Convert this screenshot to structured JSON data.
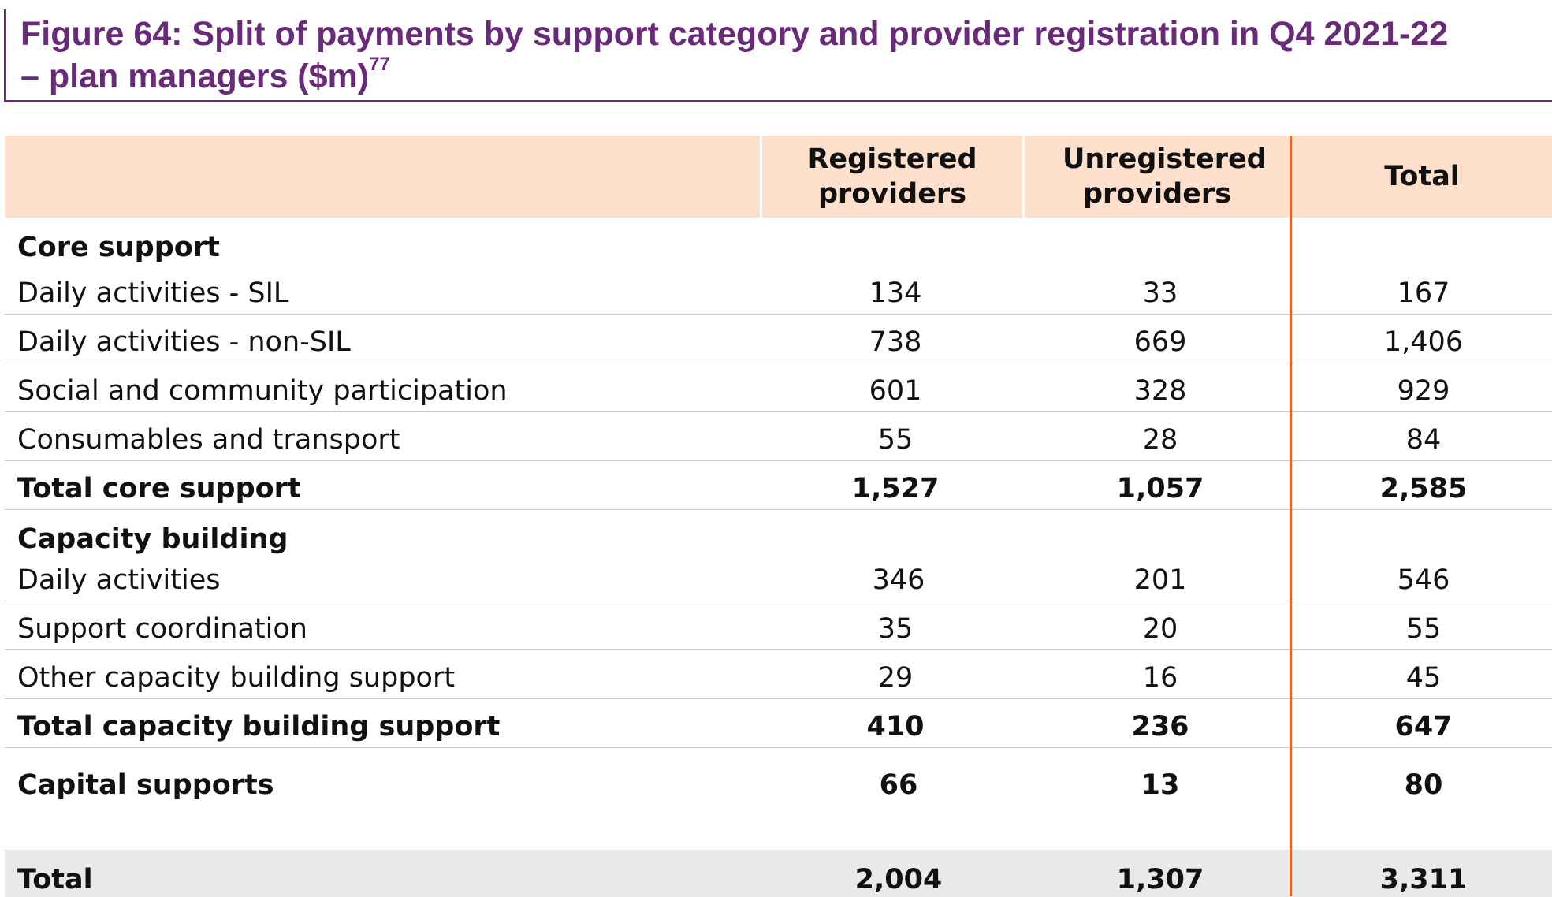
{
  "figure": {
    "title": "Figure 64: Split of payments by support category and provider registration in Q4 2021-22",
    "title_line2": "– plan managers ($m)",
    "footnote_ref": "77"
  },
  "table": {
    "columns": [
      "",
      "Registered providers",
      "Unregistered providers",
      "Total"
    ],
    "rows": [
      {
        "label": "Core support",
        "type": "section"
      },
      {
        "label": "Daily activities - SIL",
        "values": [
          "134",
          "33",
          "167"
        ]
      },
      {
        "label": "Daily activities - non-SIL",
        "values": [
          "738",
          "669",
          "1,406"
        ]
      },
      {
        "label": "Social and community participation",
        "values": [
          "601",
          "328",
          "929"
        ]
      },
      {
        "label": "Consumables and transport",
        "values": [
          "55",
          "28",
          "84"
        ]
      },
      {
        "label": "Total core support",
        "values": [
          "1,527",
          "1,057",
          "2,585"
        ],
        "type": "subtotal"
      },
      {
        "label": "Capacity building",
        "type": "section"
      },
      {
        "label": "Daily activities",
        "values": [
          "346",
          "201",
          "546"
        ]
      },
      {
        "label": "Support coordination",
        "values": [
          "35",
          "20",
          "55"
        ]
      },
      {
        "label": "Other capacity building support",
        "values": [
          "29",
          "16",
          "45"
        ]
      },
      {
        "label": "Total capacity building support",
        "values": [
          "410",
          "236",
          "647"
        ],
        "type": "subtotal"
      },
      {
        "label": "Capital supports",
        "values": [
          "66",
          "13",
          "80"
        ],
        "type": "subtotal"
      },
      {
        "label": "Total",
        "values": [
          "2,004",
          "1,307",
          "3,311"
        ],
        "type": "total"
      }
    ]
  },
  "colors": {
    "title": "#6a2a7a",
    "header_bg": "#fde0cc",
    "accent_line": "#e8652a",
    "total_bg": "#e8e9e9"
  }
}
